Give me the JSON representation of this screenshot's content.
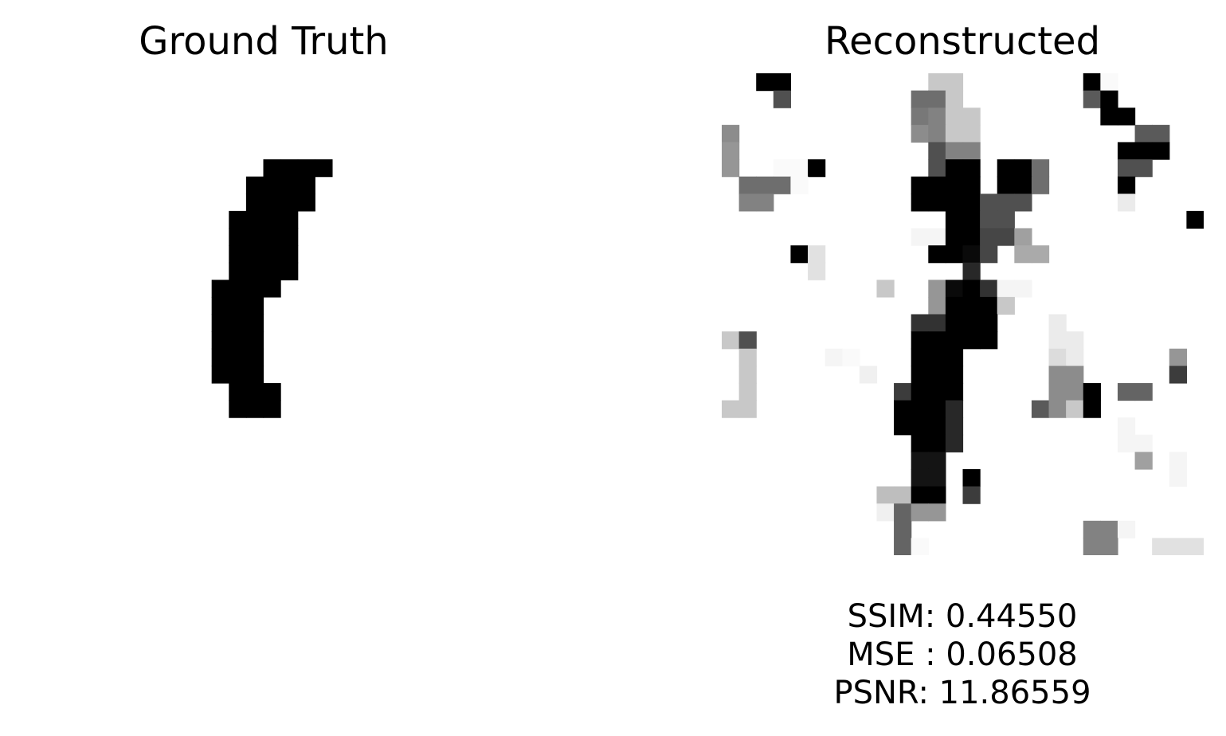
{
  "ground_truth": {
    "title": "Ground Truth",
    "rows": [
      "............................",
      "............................",
      "............................",
      "............................",
      "............................",
      "..............####..........",
      ".............####...........",
      ".............####...........",
      "............####............",
      "............####............",
      "............####............",
      "............####............",
      "...........####.............",
      "...........###..............",
      "...........###..............",
      "...........###..............",
      "...........###..............",
      "...........###..............",
      "............###.............",
      "............###.............",
      "............................",
      "............................",
      "............................",
      "............................",
      "............................",
      "............................",
      "............................",
      "............................"
    ]
  },
  "reconstructed": {
    "title": "Reconstructed",
    "cells": [
      [
        0,
        2,
        0
      ],
      [
        0,
        3,
        0
      ],
      [
        0,
        12,
        200
      ],
      [
        0,
        13,
        200
      ],
      [
        0,
        21,
        0
      ],
      [
        0,
        22,
        250
      ],
      [
        1,
        3,
        80
      ],
      [
        1,
        11,
        110
      ],
      [
        1,
        12,
        110
      ],
      [
        1,
        13,
        200
      ],
      [
        1,
        21,
        90
      ],
      [
        1,
        22,
        0
      ],
      [
        2,
        11,
        120
      ],
      [
        2,
        12,
        130
      ],
      [
        2,
        13,
        200
      ],
      [
        2,
        14,
        200
      ],
      [
        2,
        22,
        0
      ],
      [
        2,
        23,
        0
      ],
      [
        3,
        0,
        140
      ],
      [
        3,
        11,
        140
      ],
      [
        3,
        12,
        130
      ],
      [
        3,
        13,
        200
      ],
      [
        3,
        14,
        200
      ],
      [
        3,
        24,
        90
      ],
      [
        3,
        25,
        90
      ],
      [
        4,
        0,
        150
      ],
      [
        4,
        12,
        80
      ],
      [
        4,
        13,
        130
      ],
      [
        4,
        14,
        130
      ],
      [
        4,
        23,
        0
      ],
      [
        4,
        24,
        0
      ],
      [
        4,
        25,
        0
      ],
      [
        5,
        0,
        150
      ],
      [
        5,
        3,
        250
      ],
      [
        5,
        4,
        250
      ],
      [
        5,
        5,
        0
      ],
      [
        5,
        12,
        80
      ],
      [
        5,
        13,
        0
      ],
      [
        5,
        14,
        0
      ],
      [
        5,
        16,
        0
      ],
      [
        5,
        17,
        0
      ],
      [
        5,
        18,
        110
      ],
      [
        5,
        23,
        80
      ],
      [
        5,
        24,
        80
      ],
      [
        6,
        1,
        110
      ],
      [
        6,
        2,
        110
      ],
      [
        6,
        3,
        110
      ],
      [
        6,
        4,
        250
      ],
      [
        6,
        11,
        0
      ],
      [
        6,
        12,
        0
      ],
      [
        6,
        13,
        0
      ],
      [
        6,
        14,
        0
      ],
      [
        6,
        16,
        0
      ],
      [
        6,
        17,
        0
      ],
      [
        6,
        18,
        110
      ],
      [
        6,
        23,
        0
      ],
      [
        7,
        1,
        130
      ],
      [
        7,
        2,
        130
      ],
      [
        7,
        11,
        0
      ],
      [
        7,
        12,
        0
      ],
      [
        7,
        13,
        0
      ],
      [
        7,
        14,
        0
      ],
      [
        7,
        15,
        80
      ],
      [
        7,
        16,
        80
      ],
      [
        7,
        17,
        80
      ],
      [
        7,
        23,
        235
      ],
      [
        8,
        13,
        0
      ],
      [
        8,
        14,
        0
      ],
      [
        8,
        15,
        80
      ],
      [
        8,
        16,
        80
      ],
      [
        8,
        27,
        0
      ],
      [
        9,
        11,
        245
      ],
      [
        9,
        12,
        245
      ],
      [
        9,
        13,
        0
      ],
      [
        9,
        14,
        0
      ],
      [
        9,
        15,
        70
      ],
      [
        9,
        16,
        70
      ],
      [
        9,
        17,
        160
      ],
      [
        10,
        4,
        0
      ],
      [
        10,
        5,
        225
      ],
      [
        10,
        12,
        0
      ],
      [
        10,
        13,
        0
      ],
      [
        10,
        14,
        10
      ],
      [
        10,
        15,
        70
      ],
      [
        10,
        17,
        170
      ],
      [
        10,
        18,
        170
      ],
      [
        11,
        5,
        225
      ],
      [
        11,
        14,
        40
      ],
      [
        12,
        9,
        200
      ],
      [
        12,
        12,
        150
      ],
      [
        12,
        13,
        10
      ],
      [
        12,
        14,
        0
      ],
      [
        12,
        15,
        50
      ],
      [
        12,
        16,
        245
      ],
      [
        12,
        17,
        245
      ],
      [
        13,
        12,
        150
      ],
      [
        13,
        13,
        0
      ],
      [
        13,
        14,
        0
      ],
      [
        13,
        15,
        0
      ],
      [
        13,
        16,
        200
      ],
      [
        14,
        11,
        50
      ],
      [
        14,
        12,
        50
      ],
      [
        14,
        13,
        0
      ],
      [
        14,
        14,
        0
      ],
      [
        14,
        15,
        0
      ],
      [
        14,
        19,
        235
      ],
      [
        15,
        0,
        200
      ],
      [
        15,
        1,
        80
      ],
      [
        15,
        11,
        0
      ],
      [
        15,
        12,
        0
      ],
      [
        15,
        13,
        0
      ],
      [
        15,
        14,
        0
      ],
      [
        15,
        15,
        0
      ],
      [
        15,
        19,
        235
      ],
      [
        15,
        20,
        235
      ],
      [
        16,
        1,
        200
      ],
      [
        16,
        6,
        245
      ],
      [
        16,
        7,
        250
      ],
      [
        16,
        11,
        0
      ],
      [
        16,
        12,
        0
      ],
      [
        16,
        13,
        0
      ],
      [
        16,
        19,
        220
      ],
      [
        16,
        20,
        235
      ],
      [
        16,
        26,
        150
      ],
      [
        17,
        1,
        200
      ],
      [
        17,
        8,
        240
      ],
      [
        17,
        11,
        0
      ],
      [
        17,
        12,
        0
      ],
      [
        17,
        13,
        0
      ],
      [
        17,
        19,
        140
      ],
      [
        17,
        20,
        140
      ],
      [
        17,
        26,
        60
      ],
      [
        18,
        1,
        200
      ],
      [
        18,
        10,
        60
      ],
      [
        18,
        11,
        0
      ],
      [
        18,
        12,
        0
      ],
      [
        18,
        13,
        0
      ],
      [
        18,
        19,
        140
      ],
      [
        18,
        20,
        140
      ],
      [
        18,
        21,
        0
      ],
      [
        18,
        23,
        100
      ],
      [
        18,
        24,
        100
      ],
      [
        19,
        0,
        200
      ],
      [
        19,
        1,
        200
      ],
      [
        19,
        10,
        0
      ],
      [
        19,
        11,
        0
      ],
      [
        19,
        12,
        0
      ],
      [
        19,
        13,
        40
      ],
      [
        19,
        18,
        90
      ],
      [
        19,
        19,
        140
      ],
      [
        19,
        20,
        200
      ],
      [
        19,
        21,
        0
      ],
      [
        20,
        10,
        0
      ],
      [
        20,
        11,
        0
      ],
      [
        20,
        12,
        0
      ],
      [
        20,
        13,
        40
      ],
      [
        20,
        23,
        245
      ],
      [
        21,
        11,
        0
      ],
      [
        21,
        12,
        0
      ],
      [
        21,
        13,
        40
      ],
      [
        21,
        23,
        245
      ],
      [
        21,
        24,
        245
      ],
      [
        22,
        11,
        20
      ],
      [
        22,
        12,
        20
      ],
      [
        22,
        24,
        160
      ],
      [
        22,
        26,
        245
      ],
      [
        23,
        11,
        20
      ],
      [
        23,
        12,
        20
      ],
      [
        23,
        14,
        0
      ],
      [
        23,
        26,
        245
      ],
      [
        24,
        9,
        190
      ],
      [
        24,
        10,
        190
      ],
      [
        24,
        11,
        0
      ],
      [
        24,
        12,
        0
      ],
      [
        24,
        14,
        60
      ],
      [
        25,
        9,
        240
      ],
      [
        25,
        10,
        100
      ],
      [
        25,
        11,
        150
      ],
      [
        25,
        12,
        150
      ],
      [
        26,
        10,
        100
      ],
      [
        26,
        21,
        130
      ],
      [
        26,
        22,
        130
      ],
      [
        26,
        23,
        245
      ],
      [
        27,
        10,
        100
      ],
      [
        27,
        11,
        250
      ],
      [
        27,
        21,
        130
      ],
      [
        27,
        22,
        130
      ],
      [
        27,
        25,
        225
      ],
      [
        27,
        26,
        225
      ],
      [
        27,
        27,
        225
      ]
    ]
  },
  "metrics": {
    "ssim": "SSIM: 0.44550",
    "mse": "MSE : 0.06508",
    "psnr": "PSNR: 11.86559"
  }
}
